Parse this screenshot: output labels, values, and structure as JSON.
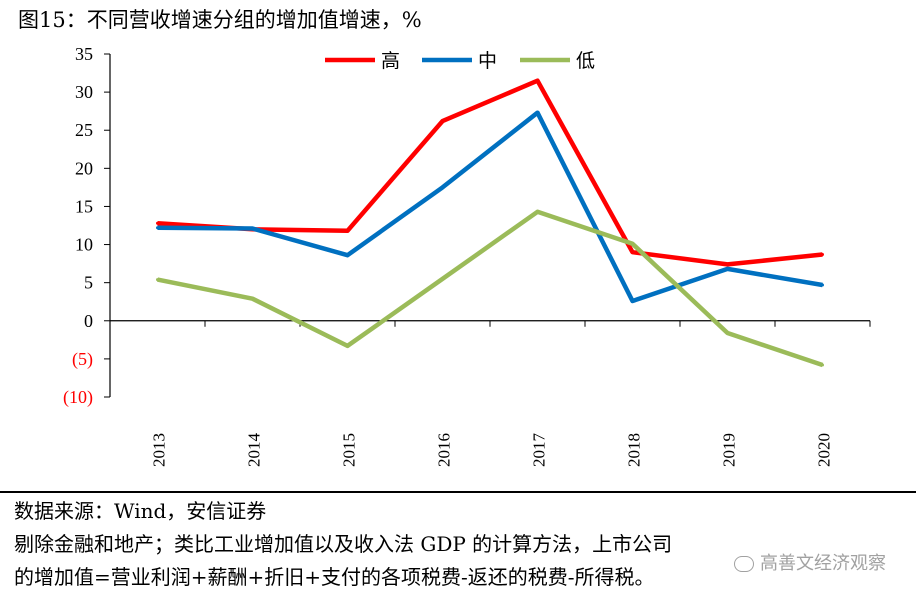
{
  "title": "图15：不同营收增速分组的增加值增速，%",
  "chart_data": {
    "type": "line",
    "categories": [
      "2013",
      "2014",
      "2015",
      "2016",
      "2017",
      "2018",
      "2019",
      "2020"
    ],
    "y_ticks": [
      "35",
      "30",
      "25",
      "20",
      "15",
      "10",
      "5",
      "0",
      "(5)",
      "(10)"
    ],
    "ylim": [
      -10,
      35
    ],
    "legend_position": "top-center",
    "series": [
      {
        "name": "高",
        "color": "#ff0000",
        "values": [
          12.8,
          12.0,
          11.8,
          26.2,
          31.5,
          9.0,
          7.4,
          8.7
        ]
      },
      {
        "name": "中",
        "color": "#0070c0",
        "values": [
          12.2,
          12.1,
          8.6,
          17.5,
          27.3,
          2.6,
          6.8,
          4.7
        ]
      },
      {
        "name": "低",
        "color": "#9bbb59",
        "values": [
          5.4,
          2.9,
          -3.3,
          5.5,
          14.3,
          10.1,
          -1.6,
          -5.8
        ]
      }
    ],
    "negative_label_color": "#ff0000"
  },
  "source": {
    "line1": "数据来源：Wind，安信证券",
    "line2": "剔除金融和地产；类比工业增加值以及收入法 GDP 的计算方法，上市公司",
    "line3": "的增加值=营业利润+薪酬+折旧+支付的各项税费-返还的税费-所得税。"
  },
  "watermark": "高善文经济观察"
}
